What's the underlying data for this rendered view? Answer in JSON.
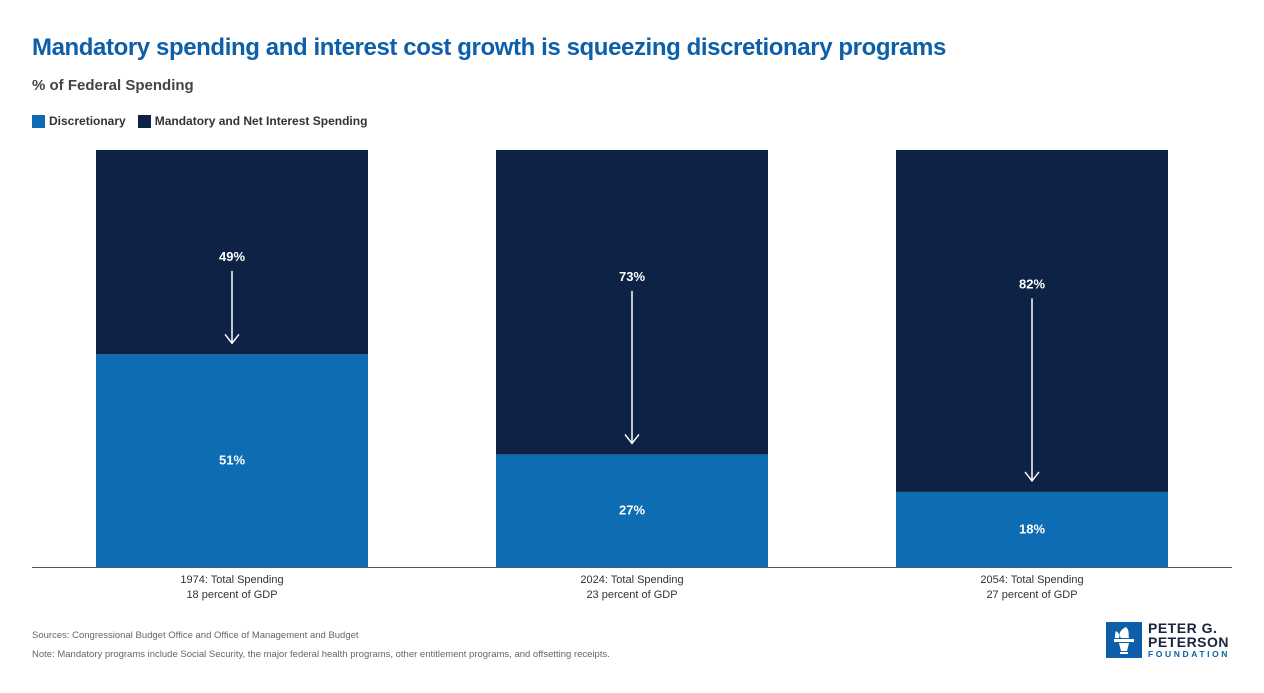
{
  "title": "Mandatory spending and interest cost growth is squeezing discretionary programs",
  "subtitle": "% of Federal Spending",
  "legend": {
    "items": [
      {
        "label": "Discretionary",
        "color": "#0e6cb3"
      },
      {
        "label": "Mandatory and Net Interest Spending",
        "color": "#0e2246"
      }
    ]
  },
  "chart_data": {
    "type": "bar",
    "stacked": true,
    "categories": [
      {
        "line1": "1974: Total Spending",
        "line2": "18 percent of GDP"
      },
      {
        "line1": "2024: Total Spending",
        "line2": "23 percent of GDP"
      },
      {
        "line1": "2054: Total Spending",
        "line2": "27 percent of GDP"
      }
    ],
    "series": [
      {
        "name": "Discretionary",
        "color": "#0e6cb3",
        "values": [
          51,
          27,
          18
        ],
        "labels": [
          "51%",
          "27%",
          "18%"
        ]
      },
      {
        "name": "Mandatory and Net Interest Spending",
        "color": "#0e2246",
        "values": [
          49,
          73,
          82
        ],
        "labels": [
          "49%",
          "73%",
          "82%"
        ]
      }
    ],
    "ylim": [
      0,
      100
    ],
    "grid": false,
    "legend_position": "top-left",
    "annotations": "downward arrows within mandatory segments"
  },
  "footer": {
    "sources": "Sources: Congressional Budget Office and Office of Management and Budget",
    "note": "Note: Mandatory programs include Social Security, the major federal health programs, other entitlement programs, and offsetting receipts."
  },
  "logo": {
    "line1": "PETER G.",
    "line2": "PETERSON",
    "line3": "FOUNDATION",
    "icon": "torch-icon",
    "color": "#0c5fa8"
  }
}
